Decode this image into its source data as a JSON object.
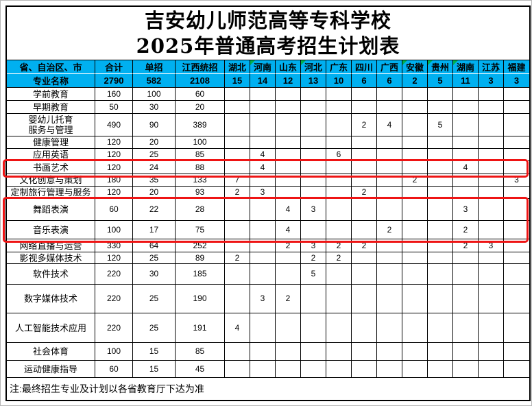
{
  "title": {
    "line1": "吉安幼儿师范高等专科学校",
    "line2": "2025年普通高考招生计划表"
  },
  "table": {
    "header_row1": [
      "省、自治区、市",
      "合计",
      "单招",
      "江西统招",
      "湖北",
      "河南",
      "山东",
      "河北",
      "广东",
      "四川",
      "广西",
      "安徽",
      "贵州",
      "湖南",
      "江苏",
      "福建"
    ],
    "header_row2": [
      "专业名称",
      "2790",
      "582",
      "2108",
      "15",
      "14",
      "12",
      "13",
      "10",
      "6",
      "6",
      "2",
      "5",
      "11",
      "3",
      "3"
    ],
    "comment_flag_columns": [
      5,
      7,
      11,
      12,
      13
    ],
    "rows": [
      {
        "name": "学前教育",
        "values": [
          "160",
          "100",
          "60",
          "",
          "",
          "",
          "",
          "",
          "",
          "",
          "",
          "",
          "",
          "",
          ""
        ]
      },
      {
        "name": "早期教育",
        "values": [
          "50",
          "30",
          "20",
          "",
          "",
          "",
          "",
          "",
          "",
          "",
          "",
          "",
          "",
          "",
          ""
        ]
      },
      {
        "name": "婴幼儿托育\n服务与管理",
        "values": [
          "490",
          "90",
          "389",
          "",
          "",
          "",
          "",
          "",
          "2",
          "4",
          "",
          "5",
          "",
          "",
          ""
        ]
      },
      {
        "name": "健康管理",
        "values": [
          "120",
          "20",
          "100",
          "",
          "",
          "",
          "",
          "",
          "",
          "",
          "",
          "",
          "",
          "",
          ""
        ]
      },
      {
        "name": "应用英语",
        "values": [
          "120",
          "25",
          "85",
          "",
          "4",
          "",
          "",
          "6",
          "",
          "",
          "",
          "",
          "",
          "",
          ""
        ]
      },
      {
        "name": "书画艺术",
        "values": [
          "120",
          "24",
          "88",
          "",
          "4",
          "",
          "",
          "",
          "",
          "",
          "",
          "",
          "4",
          "",
          ""
        ]
      },
      {
        "name": "文化创意与策划",
        "values": [
          "180",
          "35",
          "133",
          "7",
          "",
          "",
          "",
          "",
          "",
          "",
          "2",
          "",
          "",
          "",
          "3"
        ]
      },
      {
        "name": "定制旅行管理与服务",
        "values": [
          "120",
          "20",
          "93",
          "2",
          "3",
          "",
          "",
          "",
          "2",
          "",
          "",
          "",
          "",
          "",
          ""
        ]
      },
      {
        "name": "舞蹈表演",
        "values": [
          "60",
          "22",
          "28",
          "",
          "",
          "4",
          "3",
          "",
          "",
          "",
          "",
          "",
          "3",
          "",
          ""
        ]
      },
      {
        "name": "音乐表演",
        "values": [
          "100",
          "17",
          "75",
          "",
          "",
          "4",
          "",
          "",
          "",
          "2",
          "",
          "",
          "2",
          "",
          ""
        ]
      },
      {
        "name": "网络直播与运营",
        "values": [
          "330",
          "64",
          "252",
          "",
          "",
          "2",
          "3",
          "2",
          "2",
          "",
          "",
          "",
          "2",
          "3",
          ""
        ]
      },
      {
        "name": "影视多媒体技术",
        "values": [
          "120",
          "25",
          "89",
          "2",
          "",
          "",
          "2",
          "2",
          "",
          "",
          "",
          "",
          "",
          "",
          ""
        ]
      },
      {
        "name": "软件技术",
        "values": [
          "220",
          "30",
          "185",
          "",
          "",
          "",
          "5",
          "",
          "",
          "",
          "",
          "",
          "",
          "",
          ""
        ]
      },
      {
        "name": "数字媒体技术",
        "values": [
          "220",
          "25",
          "190",
          "",
          "3",
          "2",
          "",
          "",
          "",
          "",
          "",
          "",
          "",
          "",
          ""
        ]
      },
      {
        "name": "人工智能技术应用",
        "values": [
          "220",
          "25",
          "191",
          "4",
          "",
          "",
          "",
          "",
          "",
          "",
          "",
          "",
          "",
          "",
          ""
        ]
      },
      {
        "name": "社会体育",
        "values": [
          "100",
          "15",
          "85",
          "",
          "",
          "",
          "",
          "",
          "",
          "",
          "",
          "",
          "",
          "",
          ""
        ]
      },
      {
        "name": "运动健康指导",
        "values": [
          "60",
          "15",
          "45",
          "",
          "",
          "",
          "",
          "",
          "",
          "",
          "",
          "",
          "",
          "",
          ""
        ]
      }
    ],
    "highlight_boxes": [
      {
        "first_row": 5,
        "last_row": 5
      },
      {
        "first_row": 8,
        "last_row": 9
      }
    ],
    "note": "注:最终招生专业及计划以各省教育厅下达为准"
  },
  "colors": {
    "header_fill": "#00b0f0",
    "highlight_border": "#ee1414",
    "comment_flag_green": "#00b050"
  }
}
